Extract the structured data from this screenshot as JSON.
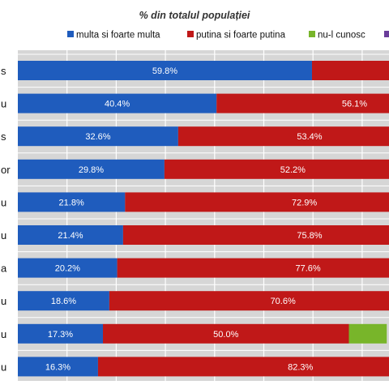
{
  "colors": {
    "plot_bg": "#d6d6d6",
    "grid": "#ffffff",
    "series": [
      "#1f5cbd",
      "#c01818",
      "#78b52a",
      "#6a3d9a"
    ],
    "label_text": "#ffffff"
  },
  "chart_data": {
    "type": "bar",
    "orientation": "horizontal",
    "stacked": true,
    "title": "% din totalul populației",
    "legend_position": "top",
    "grid": true,
    "xlim": [
      0,
      100
    ],
    "categories": [
      "s",
      "u",
      "s",
      "or",
      "u",
      "u",
      "a",
      "u",
      "u",
      "u"
    ],
    "series": [
      {
        "name": "multa si foarte multa",
        "values": [
          59.8,
          40.4,
          32.6,
          29.8,
          21.8,
          21.4,
          20.2,
          18.6,
          17.3,
          16.3
        ],
        "labels": [
          "59.8%",
          "40.4%",
          "32.6%",
          "29.8%",
          "21.8%",
          "21.4%",
          "20.2%",
          "18.6%",
          "17.3%",
          "16.3%"
        ]
      },
      {
        "name": "putina si foarte putina",
        "values": [
          40.2,
          56.1,
          53.4,
          52.2,
          72.9,
          75.8,
          77.6,
          70.6,
          50.0,
          82.3
        ],
        "labels": [
          "",
          "56.1%",
          "53.4%",
          "52.2%",
          "72.9%",
          "75.8%",
          "77.6%",
          "70.6%",
          "50.0%",
          "82.3%"
        ]
      },
      {
        "name": "nu-l cunosc",
        "values": [
          0,
          0,
          0,
          0,
          0,
          0,
          0,
          0,
          7.7,
          0
        ],
        "labels": [
          "",
          "",
          "",
          "",
          "",
          "",
          "",
          "",
          "",
          ""
        ]
      },
      {
        "name": "",
        "values": [
          0,
          0,
          0,
          0,
          0,
          0,
          0,
          0,
          0,
          0
        ],
        "labels": [
          "",
          "",
          "",
          "",
          "",
          "",
          "",
          "",
          "",
          ""
        ]
      }
    ]
  }
}
